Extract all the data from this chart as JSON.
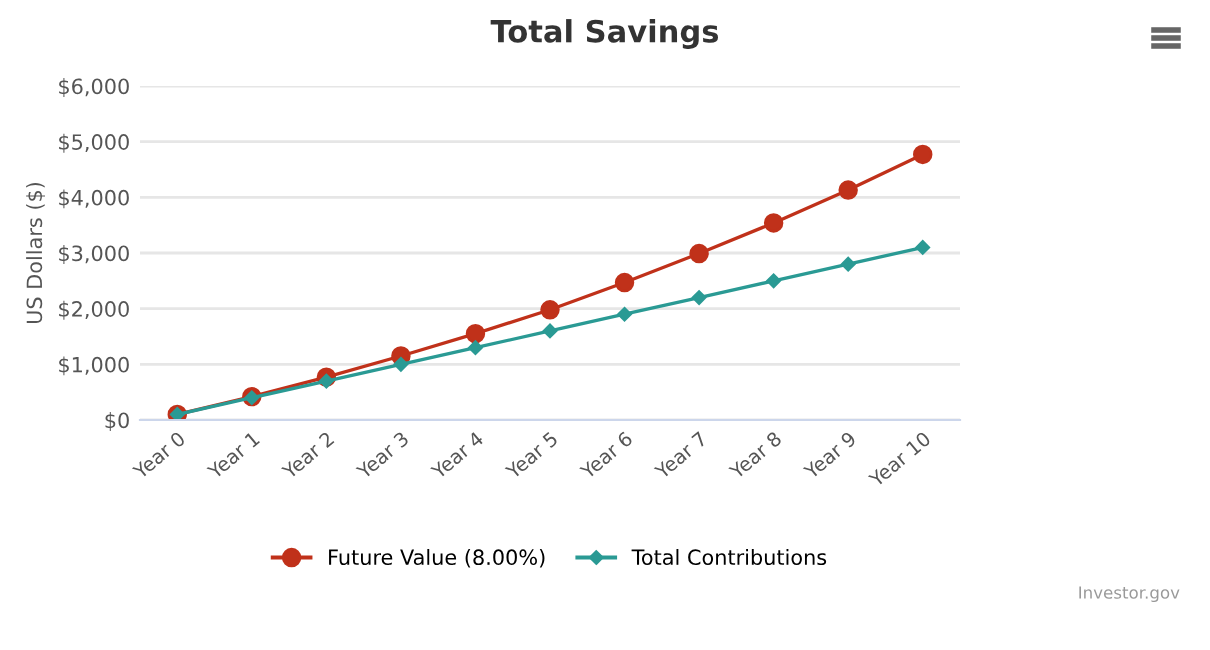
{
  "chart_data": {
    "type": "line",
    "title": "Total Savings",
    "ylabel": "US Dollars ($)",
    "categories": [
      "Year 0",
      "Year 1",
      "Year 2",
      "Year 3",
      "Year 4",
      "Year 5",
      "Year 6",
      "Year 7",
      "Year 8",
      "Year 9",
      "Year 10"
    ],
    "series": [
      {
        "name": "Future Value (8.00%)",
        "color": "#c0311a",
        "marker": "circle",
        "values": [
          100,
          420,
          770,
          1150,
          1550,
          1980,
          2470,
          2990,
          3540,
          4130,
          4770
        ]
      },
      {
        "name": "Total Contributions",
        "color": "#2a9a94",
        "marker": "diamond",
        "values": [
          100,
          400,
          700,
          1000,
          1300,
          1600,
          1900,
          2200,
          2500,
          2800,
          3100
        ]
      }
    ],
    "ylim": [
      0,
      6000
    ],
    "yticks": [
      {
        "value": 0,
        "label": "$0"
      },
      {
        "value": 1000,
        "label": "$1,000"
      },
      {
        "value": 2000,
        "label": "$2,000"
      },
      {
        "value": 3000,
        "label": "$3,000"
      },
      {
        "value": 4000,
        "label": "$4,000"
      },
      {
        "value": 5000,
        "label": "$5,000"
      },
      {
        "value": 6000,
        "label": "$6,000"
      }
    ],
    "grid": "y",
    "legend": "bottom",
    "line_style": "solid",
    "annotations": [
      "Investor.gov"
    ]
  }
}
